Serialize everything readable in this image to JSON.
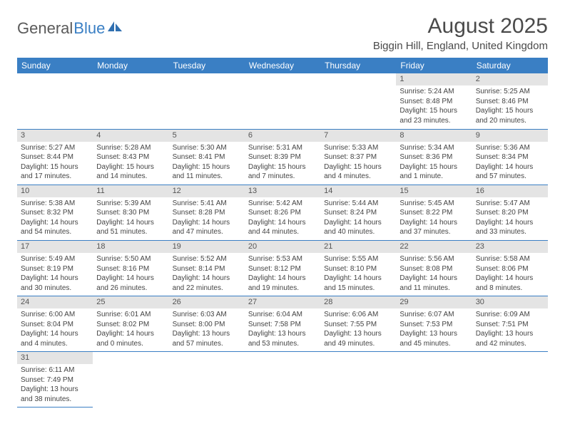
{
  "logo": {
    "general": "General",
    "blue": "Blue"
  },
  "header": {
    "month_title": "August 2025",
    "location": "Biggin Hill, England, United Kingdom"
  },
  "colors": {
    "header_bg": "#3a7fc4",
    "header_fg": "#ffffff",
    "daynum_bg": "#e4e4e4",
    "rule": "#3a7fc4",
    "text": "#444444"
  },
  "day_labels": [
    "Sunday",
    "Monday",
    "Tuesday",
    "Wednesday",
    "Thursday",
    "Friday",
    "Saturday"
  ],
  "weeks": [
    [
      null,
      null,
      null,
      null,
      null,
      {
        "n": "1",
        "sr": "Sunrise: 5:24 AM",
        "ss": "Sunset: 8:48 PM",
        "d1": "Daylight: 15 hours",
        "d2": "and 23 minutes."
      },
      {
        "n": "2",
        "sr": "Sunrise: 5:25 AM",
        "ss": "Sunset: 8:46 PM",
        "d1": "Daylight: 15 hours",
        "d2": "and 20 minutes."
      }
    ],
    [
      {
        "n": "3",
        "sr": "Sunrise: 5:27 AM",
        "ss": "Sunset: 8:44 PM",
        "d1": "Daylight: 15 hours",
        "d2": "and 17 minutes."
      },
      {
        "n": "4",
        "sr": "Sunrise: 5:28 AM",
        "ss": "Sunset: 8:43 PM",
        "d1": "Daylight: 15 hours",
        "d2": "and 14 minutes."
      },
      {
        "n": "5",
        "sr": "Sunrise: 5:30 AM",
        "ss": "Sunset: 8:41 PM",
        "d1": "Daylight: 15 hours",
        "d2": "and 11 minutes."
      },
      {
        "n": "6",
        "sr": "Sunrise: 5:31 AM",
        "ss": "Sunset: 8:39 PM",
        "d1": "Daylight: 15 hours",
        "d2": "and 7 minutes."
      },
      {
        "n": "7",
        "sr": "Sunrise: 5:33 AM",
        "ss": "Sunset: 8:37 PM",
        "d1": "Daylight: 15 hours",
        "d2": "and 4 minutes."
      },
      {
        "n": "8",
        "sr": "Sunrise: 5:34 AM",
        "ss": "Sunset: 8:36 PM",
        "d1": "Daylight: 15 hours",
        "d2": "and 1 minute."
      },
      {
        "n": "9",
        "sr": "Sunrise: 5:36 AM",
        "ss": "Sunset: 8:34 PM",
        "d1": "Daylight: 14 hours",
        "d2": "and 57 minutes."
      }
    ],
    [
      {
        "n": "10",
        "sr": "Sunrise: 5:38 AM",
        "ss": "Sunset: 8:32 PM",
        "d1": "Daylight: 14 hours",
        "d2": "and 54 minutes."
      },
      {
        "n": "11",
        "sr": "Sunrise: 5:39 AM",
        "ss": "Sunset: 8:30 PM",
        "d1": "Daylight: 14 hours",
        "d2": "and 51 minutes."
      },
      {
        "n": "12",
        "sr": "Sunrise: 5:41 AM",
        "ss": "Sunset: 8:28 PM",
        "d1": "Daylight: 14 hours",
        "d2": "and 47 minutes."
      },
      {
        "n": "13",
        "sr": "Sunrise: 5:42 AM",
        "ss": "Sunset: 8:26 PM",
        "d1": "Daylight: 14 hours",
        "d2": "and 44 minutes."
      },
      {
        "n": "14",
        "sr": "Sunrise: 5:44 AM",
        "ss": "Sunset: 8:24 PM",
        "d1": "Daylight: 14 hours",
        "d2": "and 40 minutes."
      },
      {
        "n": "15",
        "sr": "Sunrise: 5:45 AM",
        "ss": "Sunset: 8:22 PM",
        "d1": "Daylight: 14 hours",
        "d2": "and 37 minutes."
      },
      {
        "n": "16",
        "sr": "Sunrise: 5:47 AM",
        "ss": "Sunset: 8:20 PM",
        "d1": "Daylight: 14 hours",
        "d2": "and 33 minutes."
      }
    ],
    [
      {
        "n": "17",
        "sr": "Sunrise: 5:49 AM",
        "ss": "Sunset: 8:19 PM",
        "d1": "Daylight: 14 hours",
        "d2": "and 30 minutes."
      },
      {
        "n": "18",
        "sr": "Sunrise: 5:50 AM",
        "ss": "Sunset: 8:16 PM",
        "d1": "Daylight: 14 hours",
        "d2": "and 26 minutes."
      },
      {
        "n": "19",
        "sr": "Sunrise: 5:52 AM",
        "ss": "Sunset: 8:14 PM",
        "d1": "Daylight: 14 hours",
        "d2": "and 22 minutes."
      },
      {
        "n": "20",
        "sr": "Sunrise: 5:53 AM",
        "ss": "Sunset: 8:12 PM",
        "d1": "Daylight: 14 hours",
        "d2": "and 19 minutes."
      },
      {
        "n": "21",
        "sr": "Sunrise: 5:55 AM",
        "ss": "Sunset: 8:10 PM",
        "d1": "Daylight: 14 hours",
        "d2": "and 15 minutes."
      },
      {
        "n": "22",
        "sr": "Sunrise: 5:56 AM",
        "ss": "Sunset: 8:08 PM",
        "d1": "Daylight: 14 hours",
        "d2": "and 11 minutes."
      },
      {
        "n": "23",
        "sr": "Sunrise: 5:58 AM",
        "ss": "Sunset: 8:06 PM",
        "d1": "Daylight: 14 hours",
        "d2": "and 8 minutes."
      }
    ],
    [
      {
        "n": "24",
        "sr": "Sunrise: 6:00 AM",
        "ss": "Sunset: 8:04 PM",
        "d1": "Daylight: 14 hours",
        "d2": "and 4 minutes."
      },
      {
        "n": "25",
        "sr": "Sunrise: 6:01 AM",
        "ss": "Sunset: 8:02 PM",
        "d1": "Daylight: 14 hours",
        "d2": "and 0 minutes."
      },
      {
        "n": "26",
        "sr": "Sunrise: 6:03 AM",
        "ss": "Sunset: 8:00 PM",
        "d1": "Daylight: 13 hours",
        "d2": "and 57 minutes."
      },
      {
        "n": "27",
        "sr": "Sunrise: 6:04 AM",
        "ss": "Sunset: 7:58 PM",
        "d1": "Daylight: 13 hours",
        "d2": "and 53 minutes."
      },
      {
        "n": "28",
        "sr": "Sunrise: 6:06 AM",
        "ss": "Sunset: 7:55 PM",
        "d1": "Daylight: 13 hours",
        "d2": "and 49 minutes."
      },
      {
        "n": "29",
        "sr": "Sunrise: 6:07 AM",
        "ss": "Sunset: 7:53 PM",
        "d1": "Daylight: 13 hours",
        "d2": "and 45 minutes."
      },
      {
        "n": "30",
        "sr": "Sunrise: 6:09 AM",
        "ss": "Sunset: 7:51 PM",
        "d1": "Daylight: 13 hours",
        "d2": "and 42 minutes."
      }
    ],
    [
      {
        "n": "31",
        "sr": "Sunrise: 6:11 AM",
        "ss": "Sunset: 7:49 PM",
        "d1": "Daylight: 13 hours",
        "d2": "and 38 minutes."
      },
      null,
      null,
      null,
      null,
      null,
      null
    ]
  ]
}
